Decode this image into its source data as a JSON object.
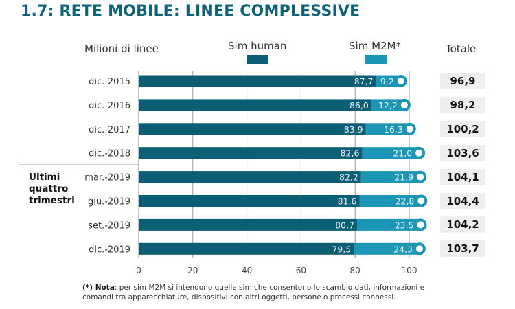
{
  "chart_data": {
    "type": "bar",
    "stacked": true,
    "orientation": "horizontal",
    "title": "1.7: RETE MOBILE: LINEE COMPLESSIVE",
    "unit_label": "Milioni di linee",
    "categories": [
      "dic.-2015",
      "dic.-2016",
      "dic.-2017",
      "dic.-2018",
      "mar.-2019",
      "giu.-2019",
      "set.-2019",
      "dic.-2019"
    ],
    "series": [
      {
        "name": "Sim human",
        "color": "#0b5e73",
        "values": [
          87.7,
          86.0,
          83.9,
          82.6,
          82.2,
          81.6,
          80.7,
          79.5
        ],
        "labels": [
          "87,7",
          "86,0",
          "83,9",
          "82,6",
          "82,2",
          "81,6",
          "80,7",
          "79,5"
        ]
      },
      {
        "name": "Sim M2M*",
        "color": "#1c96b4",
        "values": [
          9.2,
          12.2,
          16.3,
          21.0,
          21.9,
          22.8,
          23.5,
          24.3
        ],
        "labels": [
          "9,2",
          "12,2",
          "16,3",
          "21,0",
          "21,9",
          "22,8",
          "23,5",
          "24,3"
        ]
      }
    ],
    "totals_header": "Totale",
    "totals": [
      "96,9",
      "98,2",
      "100,2",
      "103,6",
      "104,1",
      "104,4",
      "104,2",
      "103,7"
    ],
    "group_label": "Ultimi quattro trimestri",
    "xticks": [
      0,
      20,
      40,
      60,
      80,
      100
    ],
    "xlim": [
      0,
      100
    ],
    "grid": true,
    "legend": "top"
  },
  "note": {
    "prefix": "(*) Nota",
    "text": ": per sim M2M si intendono quelle sim che consentono lo scambio dati, informazioni e comandi tra apparecchiature, dispositivi con altri oggetti, persone o processi connessi."
  }
}
